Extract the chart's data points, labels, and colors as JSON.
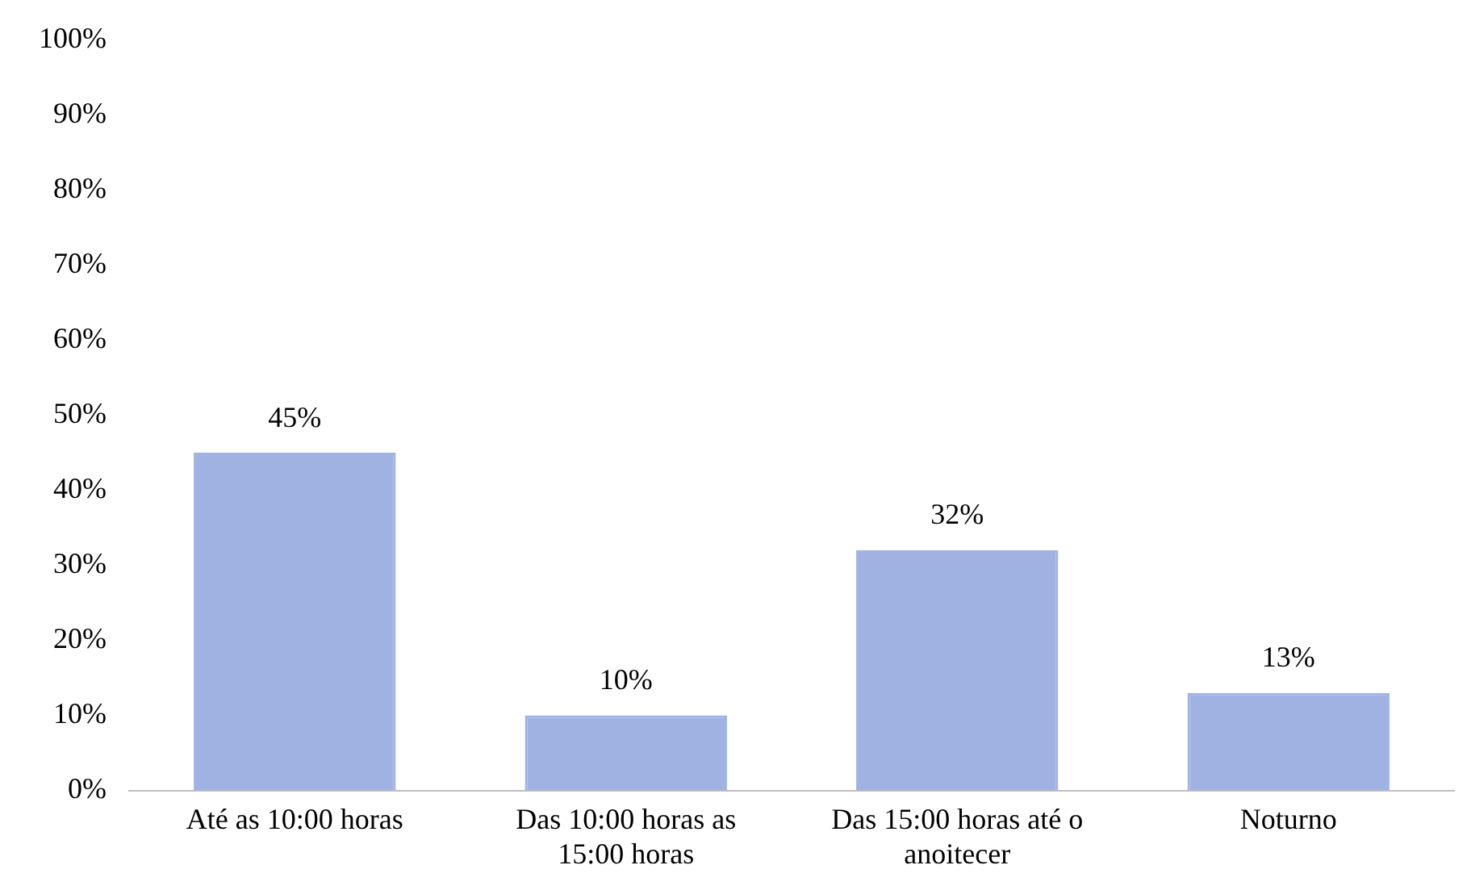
{
  "chart_data": {
    "type": "bar",
    "categories": [
      "Até as 10:00 horas",
      "Das 10:00 horas as 15:00 horas",
      "Das 15:00 horas até o anoitecer",
      "Noturno"
    ],
    "values": [
      45,
      10,
      32,
      13
    ],
    "value_labels": [
      "45%",
      "10%",
      "32%",
      "13%"
    ],
    "color": "#9fb2e2",
    "ylim": [
      0,
      100
    ],
    "yticks": [
      {
        "value": 0,
        "label": "0%"
      },
      {
        "value": 10,
        "label": "10%"
      },
      {
        "value": 20,
        "label": "20%"
      },
      {
        "value": 30,
        "label": "30%"
      },
      {
        "value": 40,
        "label": "40%"
      },
      {
        "value": 50,
        "label": "50%"
      },
      {
        "value": 60,
        "label": "60%"
      },
      {
        "value": 70,
        "label": "70%"
      },
      {
        "value": 80,
        "label": "80%"
      },
      {
        "value": 90,
        "label": "90%"
      },
      {
        "value": 100,
        "label": "100%"
      }
    ],
    "grid": false,
    "legend": false
  }
}
